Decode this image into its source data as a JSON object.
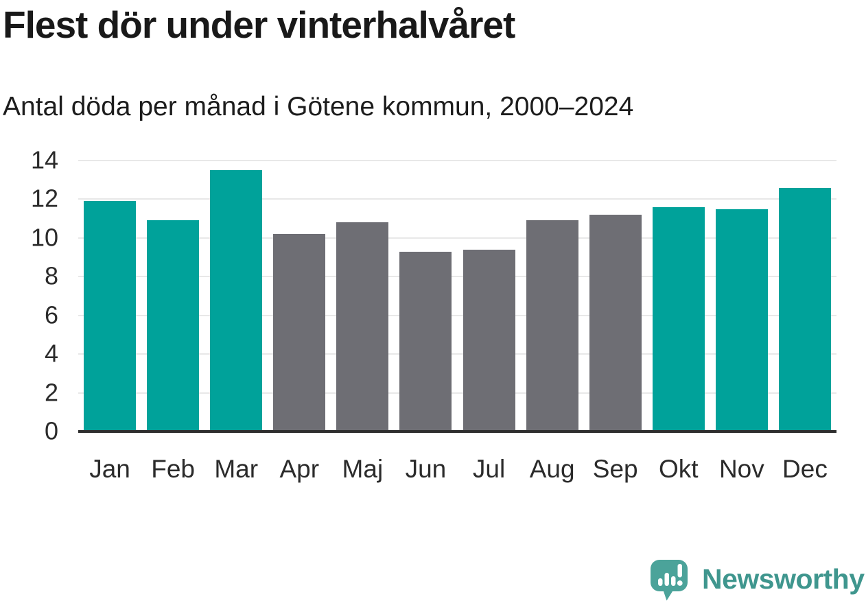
{
  "chart_data": {
    "type": "bar",
    "title": "Flest dör under vinterhalvåret",
    "subtitle": "Antal döda per månad i Götene kommun, 2000–2024",
    "categories": [
      "Jan",
      "Feb",
      "Mar",
      "Apr",
      "Maj",
      "Jun",
      "Jul",
      "Aug",
      "Sep",
      "Okt",
      "Nov",
      "Dec"
    ],
    "values": [
      11.9,
      10.9,
      13.5,
      10.2,
      10.8,
      9.3,
      9.4,
      10.9,
      11.2,
      11.6,
      11.5,
      12.6
    ],
    "bar_color_keys": [
      "winter",
      "winter",
      "winter",
      "summer",
      "summer",
      "summer",
      "summer",
      "summer",
      "summer",
      "winter",
      "winter",
      "winter"
    ],
    "colors": {
      "winter": "#00a29a",
      "summer": "#6e6e74",
      "gridline": "#e8e8e8",
      "axis": "#2e2e2e",
      "tick_text": "#2b2b2b",
      "title_text": "#191919"
    },
    "xlabel": "",
    "ylabel": "",
    "ylim": [
      0,
      14
    ],
    "yticks": [
      0,
      2,
      4,
      6,
      8,
      10,
      12,
      14
    ],
    "grid": true,
    "legend_position": "none"
  },
  "branding": {
    "logo_text": "Newsworthy",
    "logo_text_color": "#3f968e",
    "logo_icon_color": "#4ba39a",
    "logo_icon": "newsworthy-bar-chart-speech-bubble-icon"
  }
}
